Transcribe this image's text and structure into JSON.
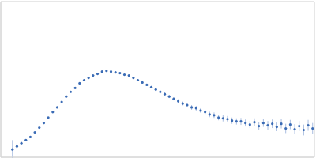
{
  "chart_data": {
    "type": "scatter",
    "x": [
      0.13,
      0.18,
      0.23,
      0.28,
      0.33,
      0.38,
      0.43,
      0.48,
      0.53,
      0.58,
      0.63,
      0.68,
      0.73,
      0.78,
      0.83,
      0.88,
      0.93,
      0.98,
      1.03,
      1.08,
      1.13,
      1.18,
      1.23,
      1.28,
      1.33,
      1.38,
      1.43,
      1.48,
      1.53,
      1.58,
      1.63,
      1.68,
      1.73,
      1.78,
      1.83,
      1.88,
      1.93,
      1.98,
      2.03,
      2.08,
      2.13,
      2.18,
      2.23,
      2.28,
      2.33,
      2.38,
      2.43,
      2.48,
      2.53,
      2.58,
      2.63,
      2.68,
      2.73,
      2.78,
      2.83,
      2.88,
      2.93,
      2.98,
      3.03,
      3.08,
      3.13,
      3.18,
      3.23,
      3.28,
      3.33,
      3.38,
      3.43,
      3.48
    ],
    "values": [
      0.1,
      0.14,
      0.18,
      0.22,
      0.26,
      0.32,
      0.38,
      0.44,
      0.51,
      0.58,
      0.64,
      0.71,
      0.78,
      0.84,
      0.89,
      0.95,
      0.99,
      1.02,
      1.05,
      1.07,
      1.1,
      1.11,
      1.1,
      1.09,
      1.08,
      1.06,
      1.05,
      1.02,
      0.99,
      0.96,
      0.93,
      0.9,
      0.87,
      0.84,
      0.81,
      0.78,
      0.75,
      0.72,
      0.69,
      0.67,
      0.64,
      0.63,
      0.6,
      0.58,
      0.55,
      0.54,
      0.51,
      0.5,
      0.49,
      0.47,
      0.46,
      0.46,
      0.44,
      0.42,
      0.45,
      0.4,
      0.44,
      0.41,
      0.43,
      0.39,
      0.43,
      0.37,
      0.42,
      0.36,
      0.4,
      0.35,
      0.41,
      0.37
    ],
    "errors": [
      0.12,
      0.04,
      0.02,
      0.01,
      0.01,
      0.01,
      0.01,
      0.01,
      0.01,
      0.01,
      0.01,
      0.01,
      0.01,
      0.01,
      0.01,
      0.01,
      0.01,
      0.01,
      0.01,
      0.01,
      0.01,
      0.01,
      0.01,
      0.01,
      0.01,
      0.01,
      0.01,
      0.01,
      0.015,
      0.015,
      0.015,
      0.015,
      0.02,
      0.02,
      0.02,
      0.02,
      0.02,
      0.025,
      0.025,
      0.025,
      0.03,
      0.03,
      0.03,
      0.03,
      0.035,
      0.035,
      0.035,
      0.04,
      0.04,
      0.04,
      0.04,
      0.045,
      0.045,
      0.045,
      0.05,
      0.05,
      0.05,
      0.055,
      0.055,
      0.055,
      0.06,
      0.06,
      0.06,
      0.065,
      0.065,
      0.07,
      0.07,
      0.07
    ],
    "color": "#3a6bb5",
    "marker": "circle",
    "xlim": [
      0,
      3.5
    ],
    "ylim": [
      0,
      2
    ],
    "xticks": [
      1
    ],
    "yticks": [
      1
    ],
    "grid": true,
    "tick_labels": false
  }
}
